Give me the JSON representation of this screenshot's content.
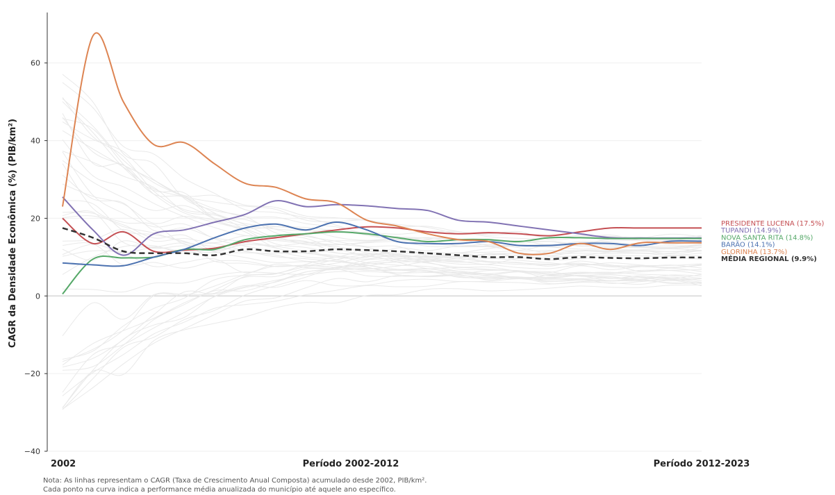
{
  "chart_data": {
    "type": "line",
    "ylabel": "CAGR da Densidade Econômica (%) (PIB/km²)",
    "x_ticks": [
      "2002",
      "Período 2002-2012",
      "Período 2012-2023"
    ],
    "y_ticks": [
      "60",
      "40",
      "20",
      "0",
      "−20",
      "−40"
    ],
    "ylim": [
      -40,
      73
    ],
    "grid": "horizontal",
    "x": [
      2002,
      2003,
      2004,
      2005,
      2006,
      2007,
      2008,
      2009,
      2010,
      2011,
      2012,
      2013,
      2014,
      2015,
      2016,
      2017,
      2018,
      2019,
      2020,
      2021,
      2022,
      2023
    ],
    "background_series_count": 40,
    "series": [
      {
        "name": "PRESIDENTE LUCENA (17.5%)",
        "color": "#c44e52",
        "values": [
          20.0,
          13.5,
          16.5,
          11.5,
          11.8,
          12.3,
          14.0,
          15.0,
          16.0,
          17.0,
          17.8,
          17.5,
          16.5,
          16.0,
          16.3,
          16.0,
          15.5,
          16.5,
          17.5,
          17.5,
          17.5,
          17.5
        ]
      },
      {
        "name": "TUPANDI (14.9%)",
        "color": "#8172b3",
        "values": [
          25.5,
          17.0,
          10.5,
          16.0,
          17.0,
          19.0,
          21.0,
          24.5,
          23.0,
          23.5,
          23.2,
          22.5,
          22.0,
          19.5,
          19.0,
          18.0,
          17.0,
          16.0,
          15.0,
          14.9,
          14.9,
          14.9
        ]
      },
      {
        "name": "NOVA SANTA RITA (14.8%)",
        "color": "#55a868",
        "values": [
          0.5,
          9.5,
          9.8,
          10.0,
          12.0,
          12.0,
          14.5,
          15.5,
          16.0,
          16.5,
          16.0,
          15.0,
          14.0,
          14.5,
          14.5,
          14.0,
          15.0,
          15.0,
          14.8,
          14.8,
          14.8,
          14.8
        ]
      },
      {
        "name": "BARÃO (14.1%)",
        "color": "#4c72b0",
        "values": [
          8.5,
          8.0,
          7.8,
          10.0,
          12.0,
          15.0,
          17.5,
          18.5,
          17.0,
          19.0,
          17.0,
          14.0,
          13.5,
          13.5,
          14.0,
          13.0,
          13.0,
          13.5,
          13.5,
          13.0,
          14.1,
          14.1
        ]
      },
      {
        "name": "GLORINHA (13.7%)",
        "color": "#dd8452",
        "values": [
          23.0,
          67.0,
          50.0,
          39.0,
          39.5,
          34.0,
          29.0,
          28.0,
          25.0,
          24.0,
          19.5,
          18.0,
          16.0,
          14.5,
          14.0,
          11.0,
          11.0,
          13.5,
          12.0,
          13.7,
          13.7,
          13.7
        ]
      },
      {
        "name": "MÉDIA REGIONAL (9.9%)",
        "color": "#333333",
        "dashed": true,
        "values": [
          17.5,
          15.0,
          11.5,
          11.0,
          11.0,
          10.5,
          12.0,
          11.5,
          11.5,
          12.0,
          11.8,
          11.5,
          11.0,
          10.5,
          10.0,
          10.0,
          9.5,
          10.0,
          9.8,
          9.7,
          9.9,
          9.9
        ]
      }
    ]
  },
  "note": {
    "line1": "Nota: As linhas representam o CAGR (Taxa de Crescimento Anual Composta) acumulado desde 2002, PIB/km².",
    "line2": "Cada ponto na curva indica a performance média anualizada do município até aquele ano específico."
  }
}
